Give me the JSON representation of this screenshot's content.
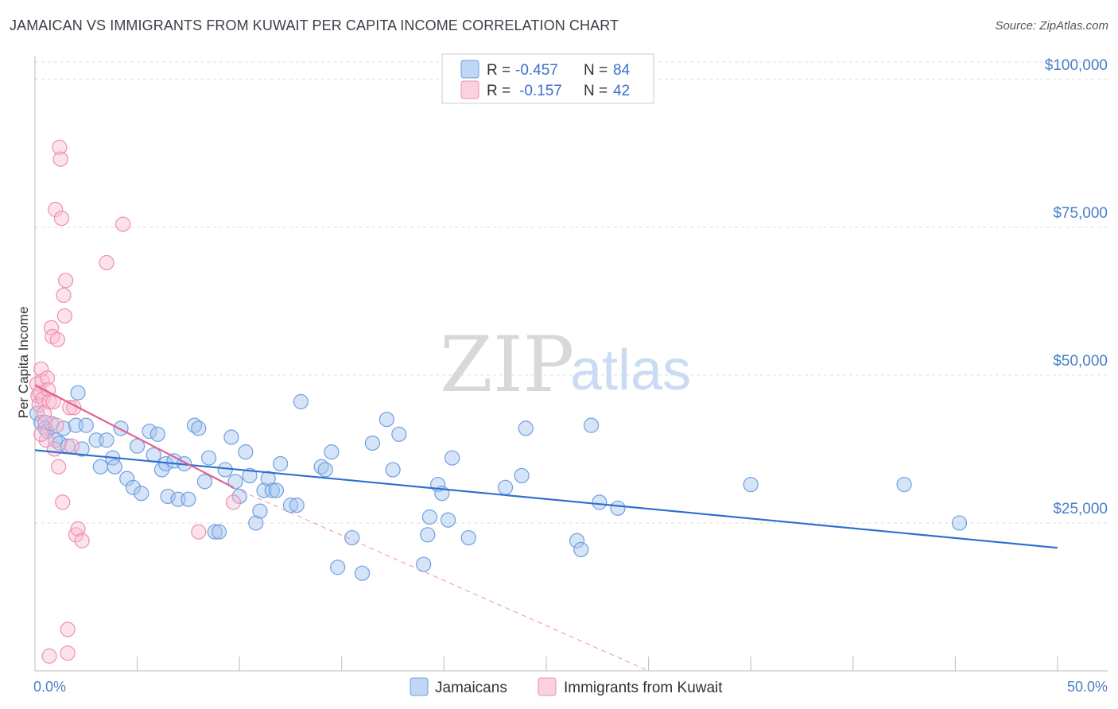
{
  "title": "JAMAICAN VS IMMIGRANTS FROM KUWAIT PER CAPITA INCOME CORRELATION CHART",
  "source": "Source: ZipAtlas.com",
  "watermark": {
    "zip": "ZIP",
    "atlas": "atlas"
  },
  "colors": {
    "blue": "#6f9fe0",
    "blue_fill": "rgba(164,196,240,0.45)",
    "blue_line": "#2f6fcf",
    "pink": "#ee8fb1",
    "pink_fill": "rgba(248,190,210,0.45)",
    "pink_line": "#e0628f",
    "grid": "#dddddd",
    "axis_text": "#4a7fc8"
  },
  "legend": {
    "row1": {
      "r_label": "R =",
      "r_value": "-0.457",
      "n_label": "N =",
      "n_value": "84"
    },
    "row2": {
      "r_label": "R =",
      "r_value": "-0.157",
      "n_label": "N =",
      "n_value": "42"
    }
  },
  "bottom_legend": {
    "series1": "Jamaicans",
    "series2": "Immigrants from Kuwait"
  },
  "chart_data": {
    "type": "scatter",
    "title": "JAMAICAN VS IMMIGRANTS FROM KUWAIT PER CAPITA INCOME CORRELATION CHART",
    "xlabel": "",
    "ylabel": "Per Capita Income",
    "xlim": [
      0,
      50
    ],
    "ylim": [
      0,
      104000
    ],
    "x_tick_labels": {
      "min": "0.0%",
      "max": "50.0%"
    },
    "y_ticks": [
      {
        "value": 25000,
        "label": "$25,000"
      },
      {
        "value": 50000,
        "label": "$50,000"
      },
      {
        "value": 75000,
        "label": "$75,000"
      },
      {
        "value": 100000,
        "label": "$100,000"
      }
    ],
    "grid": true,
    "legend_position": "top-center",
    "series": [
      {
        "name": "Jamaicans",
        "trend": {
          "x0": 0,
          "y0": 37300,
          "x1": 50,
          "y1": 20800
        },
        "points": [
          [
            0.1,
            43500
          ],
          [
            0.3,
            42000
          ],
          [
            0.5,
            41000
          ],
          [
            0.6,
            40500
          ],
          [
            0.8,
            41800
          ],
          [
            1.0,
            39000
          ],
          [
            1.2,
            38500
          ],
          [
            1.4,
            41000
          ],
          [
            2.0,
            41500
          ],
          [
            2.1,
            47000
          ],
          [
            2.3,
            37500
          ],
          [
            2.5,
            41500
          ],
          [
            3.0,
            39000
          ],
          [
            3.2,
            34500
          ],
          [
            3.5,
            39000
          ],
          [
            3.8,
            36000
          ],
          [
            3.9,
            34500
          ],
          [
            4.2,
            41000
          ],
          [
            4.5,
            32500
          ],
          [
            4.8,
            31000
          ],
          [
            5.0,
            38000
          ],
          [
            5.2,
            30000
          ],
          [
            5.6,
            40500
          ],
          [
            5.8,
            36500
          ],
          [
            6.0,
            40000
          ],
          [
            6.2,
            34000
          ],
          [
            6.4,
            35000
          ],
          [
            6.5,
            29500
          ],
          [
            6.8,
            35500
          ],
          [
            7.0,
            29000
          ],
          [
            7.3,
            35000
          ],
          [
            7.5,
            29000
          ],
          [
            7.8,
            41500
          ],
          [
            8.0,
            41000
          ],
          [
            8.3,
            32000
          ],
          [
            8.5,
            36000
          ],
          [
            8.8,
            23500
          ],
          [
            9.0,
            23500
          ],
          [
            9.3,
            34000
          ],
          [
            9.6,
            39500
          ],
          [
            9.8,
            32000
          ],
          [
            10.0,
            29500
          ],
          [
            10.3,
            37000
          ],
          [
            10.5,
            33000
          ],
          [
            10.8,
            25000
          ],
          [
            11.0,
            27000
          ],
          [
            11.2,
            30500
          ],
          [
            11.4,
            32500
          ],
          [
            11.6,
            30500
          ],
          [
            11.8,
            30500
          ],
          [
            12.0,
            35000
          ],
          [
            12.5,
            28000
          ],
          [
            12.8,
            28000
          ],
          [
            13.0,
            45500
          ],
          [
            14.0,
            34500
          ],
          [
            14.2,
            34000
          ],
          [
            14.5,
            37000
          ],
          [
            14.8,
            17500
          ],
          [
            15.5,
            22500
          ],
          [
            16.0,
            16500
          ],
          [
            16.5,
            38500
          ],
          [
            17.2,
            42500
          ],
          [
            17.5,
            34000
          ],
          [
            17.8,
            40000
          ],
          [
            19.0,
            18000
          ],
          [
            19.2,
            23000
          ],
          [
            19.3,
            26000
          ],
          [
            19.7,
            31500
          ],
          [
            19.9,
            30000
          ],
          [
            20.2,
            25500
          ],
          [
            20.4,
            36000
          ],
          [
            21.2,
            22500
          ],
          [
            23.0,
            31000
          ],
          [
            23.8,
            33000
          ],
          [
            24.0,
            41000
          ],
          [
            26.5,
            22000
          ],
          [
            26.7,
            20500
          ],
          [
            27.2,
            41500
          ],
          [
            27.6,
            28500
          ],
          [
            28.5,
            27500
          ],
          [
            35.0,
            31500
          ],
          [
            42.5,
            31500
          ],
          [
            45.2,
            25000
          ],
          [
            1.6,
            38000
          ]
        ]
      },
      {
        "name": "Immigrants from Kuwait",
        "trend": {
          "x0": 0,
          "y0": 48300,
          "x1": 9.7,
          "y1": 31000
        },
        "trend_dashed": {
          "x0": 9.7,
          "y0": 31000,
          "x1": 30,
          "y1": 0
        },
        "points": [
          [
            0.1,
            48500
          ],
          [
            0.15,
            46500
          ],
          [
            0.2,
            45000
          ],
          [
            0.25,
            47000
          ],
          [
            0.3,
            51000
          ],
          [
            0.35,
            49000
          ],
          [
            0.4,
            46000
          ],
          [
            0.45,
            43500
          ],
          [
            0.5,
            42000
          ],
          [
            0.55,
            39000
          ],
          [
            0.6,
            49500
          ],
          [
            0.65,
            47500
          ],
          [
            0.7,
            45500
          ],
          [
            0.8,
            58000
          ],
          [
            0.85,
            56500
          ],
          [
            0.9,
            45500
          ],
          [
            0.95,
            37500
          ],
          [
            1.0,
            78000
          ],
          [
            1.05,
            41500
          ],
          [
            1.1,
            56000
          ],
          [
            1.15,
            34500
          ],
          [
            1.2,
            88500
          ],
          [
            1.25,
            86500
          ],
          [
            1.3,
            76500
          ],
          [
            1.35,
            28500
          ],
          [
            1.4,
            63500
          ],
          [
            1.45,
            60000
          ],
          [
            1.5,
            66000
          ],
          [
            1.6,
            7000
          ],
          [
            1.7,
            44500
          ],
          [
            1.8,
            38000
          ],
          [
            1.9,
            44500
          ],
          [
            2.0,
            23000
          ],
          [
            2.1,
            24000
          ],
          [
            2.3,
            22000
          ],
          [
            3.5,
            69000
          ],
          [
            4.3,
            75500
          ],
          [
            8.0,
            23500
          ],
          [
            9.7,
            28500
          ],
          [
            0.7,
            2500
          ],
          [
            1.6,
            3000
          ],
          [
            0.3,
            40000
          ]
        ]
      }
    ]
  }
}
